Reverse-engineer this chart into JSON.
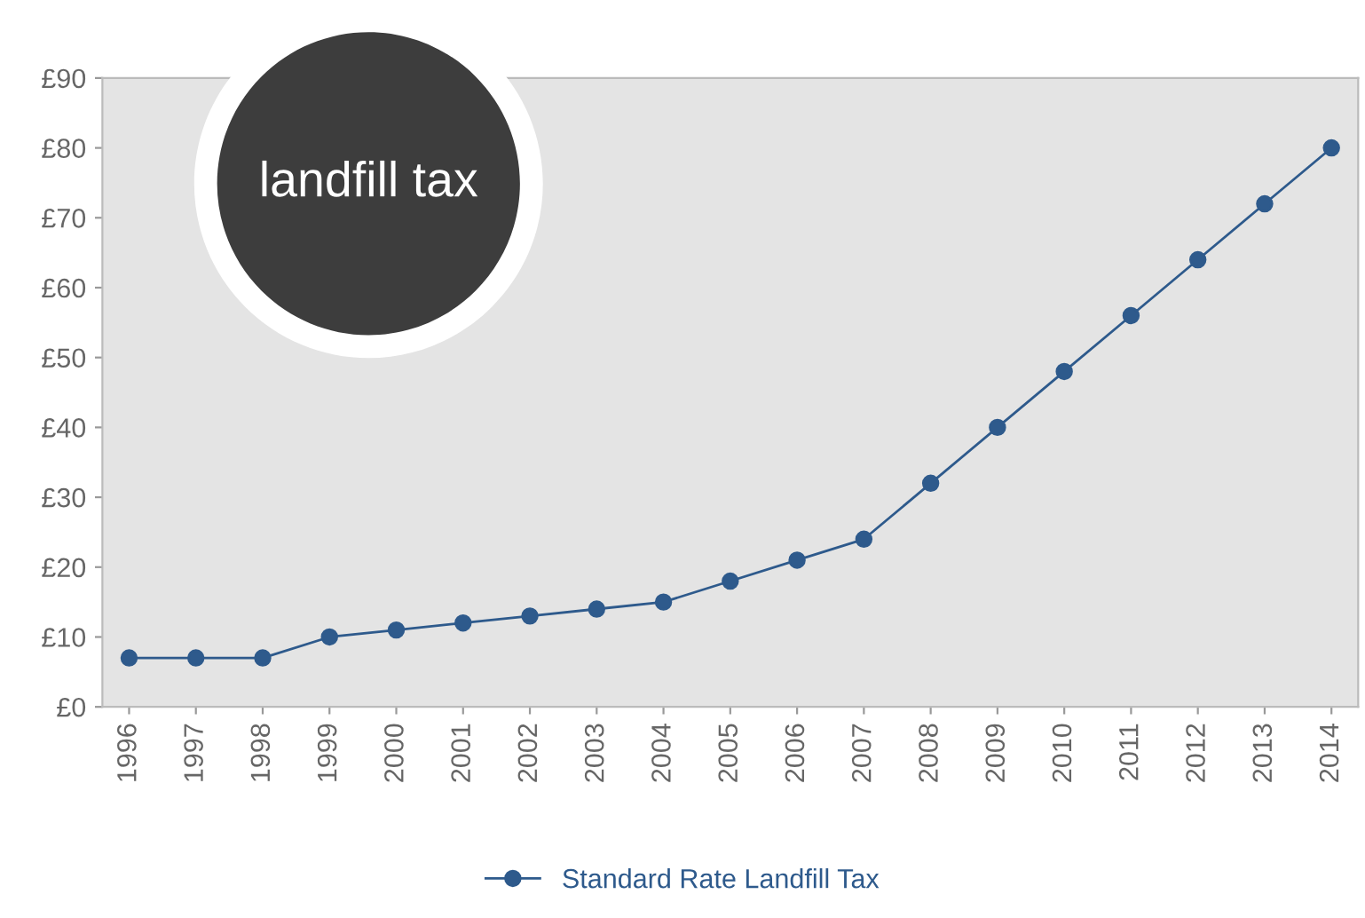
{
  "chart_data": {
    "type": "line",
    "title": "landfill tax",
    "categories": [
      "1996",
      "1997",
      "1998",
      "1999",
      "2000",
      "2001",
      "2002",
      "2003",
      "2004",
      "2005",
      "2006",
      "2007",
      "2008",
      "2009",
      "2010",
      "2011",
      "2012",
      "2013",
      "2014"
    ],
    "series": [
      {
        "name": "Standard Rate Landfill Tax",
        "color": "#2e5a8c",
        "values": [
          7,
          7,
          7,
          10,
          11,
          12,
          13,
          14,
          15,
          18,
          21,
          24,
          32,
          40,
          48,
          56,
          64,
          72,
          80
        ]
      }
    ],
    "ylim": [
      0,
      90
    ],
    "yticks": [
      {
        "value": 0,
        "label": "£0"
      },
      {
        "value": 10,
        "label": "£10"
      },
      {
        "value": 20,
        "label": "£20"
      },
      {
        "value": 30,
        "label": "£30"
      },
      {
        "value": 40,
        "label": "£40"
      },
      {
        "value": 50,
        "label": "£50"
      },
      {
        "value": 60,
        "label": "£60"
      },
      {
        "value": 70,
        "label": "£70"
      },
      {
        "value": 80,
        "label": "£80"
      },
      {
        "value": 90,
        "label": "£90"
      }
    ],
    "marker": "circle",
    "line_style": "solid",
    "legend": "bottom",
    "grid": false
  }
}
